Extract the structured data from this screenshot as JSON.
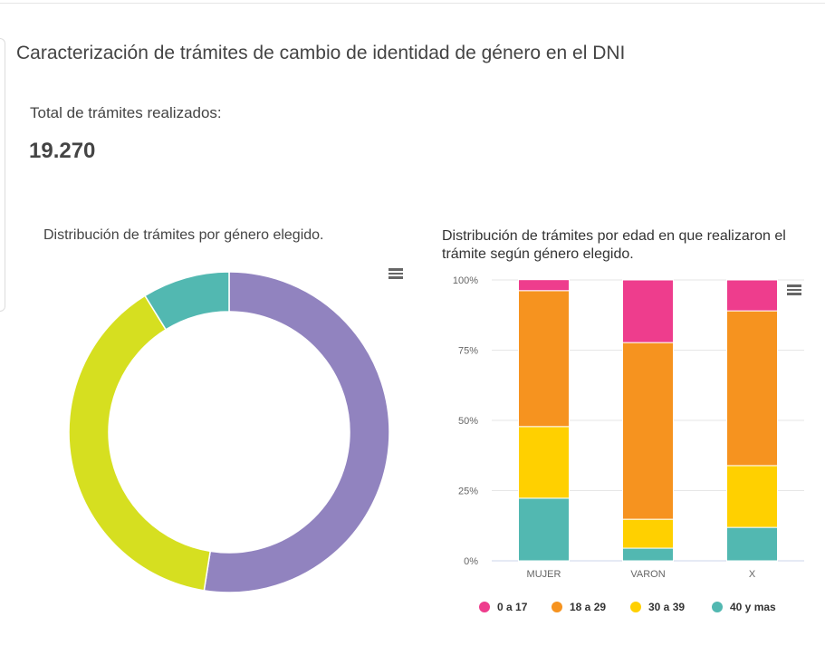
{
  "title": "Caracterización de trámites de cambio de identidad de género en el DNI",
  "total_label": "Total de trámites realizados:",
  "total_value": "19.270",
  "menu_icon": "hamburger-menu-icon",
  "chart_data": [
    {
      "type": "pie",
      "variant": "donut",
      "title": "Distribución de trámites por género elegido.",
      "slices": [
        {
          "value": 52.5,
          "color": "#9183bf"
        },
        {
          "value": 38.7,
          "color": "#d6df20"
        },
        {
          "value": 8.8,
          "color": "#52b8b1"
        }
      ]
    },
    {
      "type": "bar",
      "stacked": "percent",
      "title": "Distribución de trámites por edad en que realizaron el trámite según género elegido.",
      "categories": [
        "MUJER",
        "VARON",
        "X"
      ],
      "yticks": [
        "0%",
        "25%",
        "50%",
        "75%",
        "100%"
      ],
      "ylim": [
        0,
        100
      ],
      "grid": true,
      "legend": "bottom",
      "series": [
        {
          "name": "0 a 17",
          "color": "#ee3d8d",
          "values": [
            3.9,
            22.3,
            11.0
          ]
        },
        {
          "name": "18 a 29",
          "color": "#f6931f",
          "values": [
            48.4,
            62.9,
            55.1
          ]
        },
        {
          "name": "30 a 39",
          "color": "#ffd000",
          "values": [
            25.5,
            10.3,
            22.0
          ]
        },
        {
          "name": "40 y mas",
          "color": "#52b8b1",
          "values": [
            22.3,
            4.5,
            11.9
          ]
        }
      ]
    }
  ]
}
